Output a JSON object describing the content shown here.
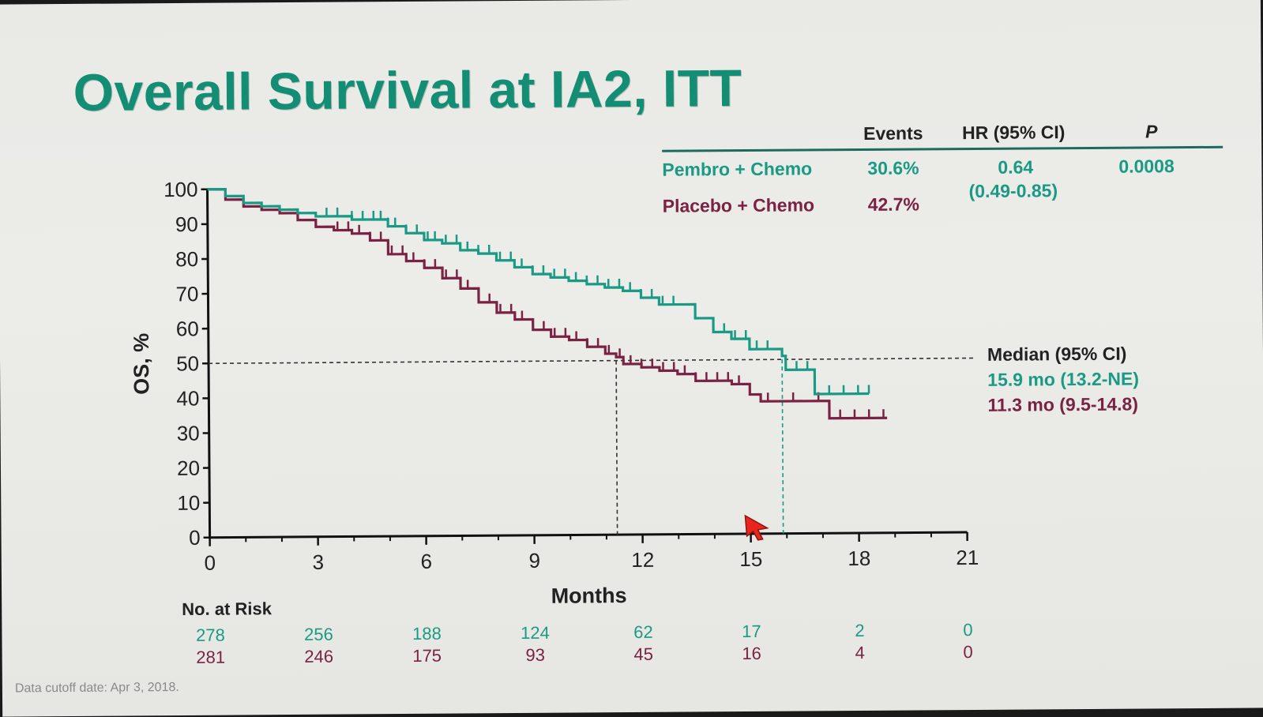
{
  "slide": {
    "title": "Overall Survival at IA2, ITT",
    "footnote": "Data cutoff date: Apr 3, 2018."
  },
  "colors": {
    "title": "#138d74",
    "pembro": "#1a9a84",
    "placebo": "#7a2244"
  },
  "stats_table": {
    "headers": {
      "events": "Events",
      "hr": "HR (95% CI)",
      "p": "P"
    },
    "pembro": {
      "label": "Pembro + Chemo",
      "events": "30.6%",
      "hr": "0.64",
      "hr_ci": "(0.49-0.85)",
      "p": "0.0008"
    },
    "placebo": {
      "label": "Placebo + Chemo",
      "events": "42.7%"
    }
  },
  "median": {
    "header": "Median (95% CI)",
    "pembro": "15.9 mo (13.2-NE)",
    "placebo": "11.3 mo (9.5-14.8)"
  },
  "risk_table": {
    "label": "No. at Risk",
    "pembro": [
      "278",
      "256",
      "188",
      "124",
      "62",
      "17",
      "2",
      "0"
    ],
    "placebo": [
      "281",
      "246",
      "175",
      "93",
      "45",
      "16",
      "4",
      "0"
    ]
  },
  "chart_data": {
    "type": "line",
    "subtype": "kaplan-meier step curve",
    "xlabel": "Months",
    "ylabel": "OS, %",
    "xlim": [
      0,
      21
    ],
    "ylim": [
      0,
      100
    ],
    "xticks": [
      "0",
      "3",
      "6",
      "9",
      "12",
      "15",
      "18",
      "21"
    ],
    "yticks": [
      "0",
      "10",
      "20",
      "30",
      "40",
      "50",
      "60",
      "70",
      "80",
      "90",
      "100"
    ],
    "grid": false,
    "reference_line_y": 50,
    "median_lines_x": [
      11.3,
      15.9
    ],
    "series": [
      {
        "name": "Pembro + Chemo",
        "color": "#1a9a84",
        "points": [
          [
            0,
            100
          ],
          [
            0.5,
            98
          ],
          [
            1,
            96
          ],
          [
            1.5,
            95
          ],
          [
            2,
            94
          ],
          [
            2.5,
            93
          ],
          [
            3,
            92
          ],
          [
            3.5,
            92
          ],
          [
            4,
            91
          ],
          [
            4.5,
            91
          ],
          [
            5,
            89
          ],
          [
            5.5,
            87
          ],
          [
            6,
            85
          ],
          [
            6.5,
            84
          ],
          [
            7,
            82
          ],
          [
            7.5,
            81
          ],
          [
            8,
            79
          ],
          [
            8.5,
            77
          ],
          [
            9,
            75
          ],
          [
            9.5,
            74
          ],
          [
            10,
            73
          ],
          [
            10.5,
            72
          ],
          [
            11,
            71
          ],
          [
            11.5,
            70
          ],
          [
            12,
            68
          ],
          [
            12.5,
            66
          ],
          [
            13,
            66
          ],
          [
            13.5,
            62
          ],
          [
            14,
            58
          ],
          [
            14.5,
            56
          ],
          [
            15,
            53
          ],
          [
            15.5,
            53
          ],
          [
            15.9,
            51
          ],
          [
            16,
            47
          ],
          [
            16.7,
            47
          ],
          [
            16.8,
            40
          ],
          [
            18.3,
            40
          ]
        ],
        "censor_x": [
          3.3,
          3.6,
          4.0,
          4.3,
          4.6,
          4.8,
          5.0,
          5.2,
          5.5,
          5.8,
          6.1,
          6.3,
          6.6,
          6.9,
          7.2,
          7.5,
          7.8,
          8.1,
          8.4,
          8.7,
          9.0,
          9.3,
          9.6,
          9.9,
          10.2,
          10.5,
          10.8,
          11.1,
          11.4,
          11.7,
          12.0,
          12.3,
          12.6,
          12.9,
          14.3,
          14.6,
          14.9,
          15.2,
          15.5,
          16.3,
          16.6,
          17.2,
          17.6,
          18.0,
          18.3
        ]
      },
      {
        "name": "Placebo + Chemo",
        "color": "#7a2244",
        "points": [
          [
            0,
            100
          ],
          [
            0.5,
            97
          ],
          [
            1,
            95
          ],
          [
            1.5,
            94
          ],
          [
            2,
            93
          ],
          [
            2.5,
            91
          ],
          [
            3,
            89
          ],
          [
            3.5,
            88
          ],
          [
            4,
            87
          ],
          [
            4.5,
            85
          ],
          [
            5,
            81
          ],
          [
            5.5,
            79
          ],
          [
            6,
            77
          ],
          [
            6.5,
            74
          ],
          [
            7,
            71
          ],
          [
            7.5,
            67
          ],
          [
            8,
            64
          ],
          [
            8.5,
            62
          ],
          [
            9,
            59
          ],
          [
            9.5,
            57
          ],
          [
            10,
            56
          ],
          [
            10.5,
            54
          ],
          [
            11,
            52
          ],
          [
            11.3,
            51
          ],
          [
            11.5,
            49
          ],
          [
            12,
            48
          ],
          [
            12.5,
            47
          ],
          [
            13,
            46
          ],
          [
            13.5,
            44
          ],
          [
            14,
            44
          ],
          [
            14.5,
            43
          ],
          [
            15,
            40
          ],
          [
            15.3,
            38
          ],
          [
            16,
            38
          ],
          [
            17,
            38
          ],
          [
            17.2,
            33
          ],
          [
            18.8,
            33
          ]
        ],
        "censor_x": [
          3.6,
          3.9,
          4.2,
          4.5,
          4.8,
          5.1,
          5.4,
          5.7,
          6.0,
          6.3,
          6.6,
          6.9,
          7.2,
          7.5,
          7.8,
          8.1,
          8.4,
          8.7,
          9.0,
          9.3,
          9.6,
          9.9,
          10.2,
          10.5,
          10.8,
          11.1,
          11.4,
          11.7,
          12.0,
          12.3,
          12.6,
          12.9,
          13.2,
          13.5,
          13.8,
          14.1,
          14.4,
          14.7,
          15.5,
          16.2,
          16.9,
          17.5,
          17.9,
          18.3,
          18.7
        ]
      }
    ]
  }
}
